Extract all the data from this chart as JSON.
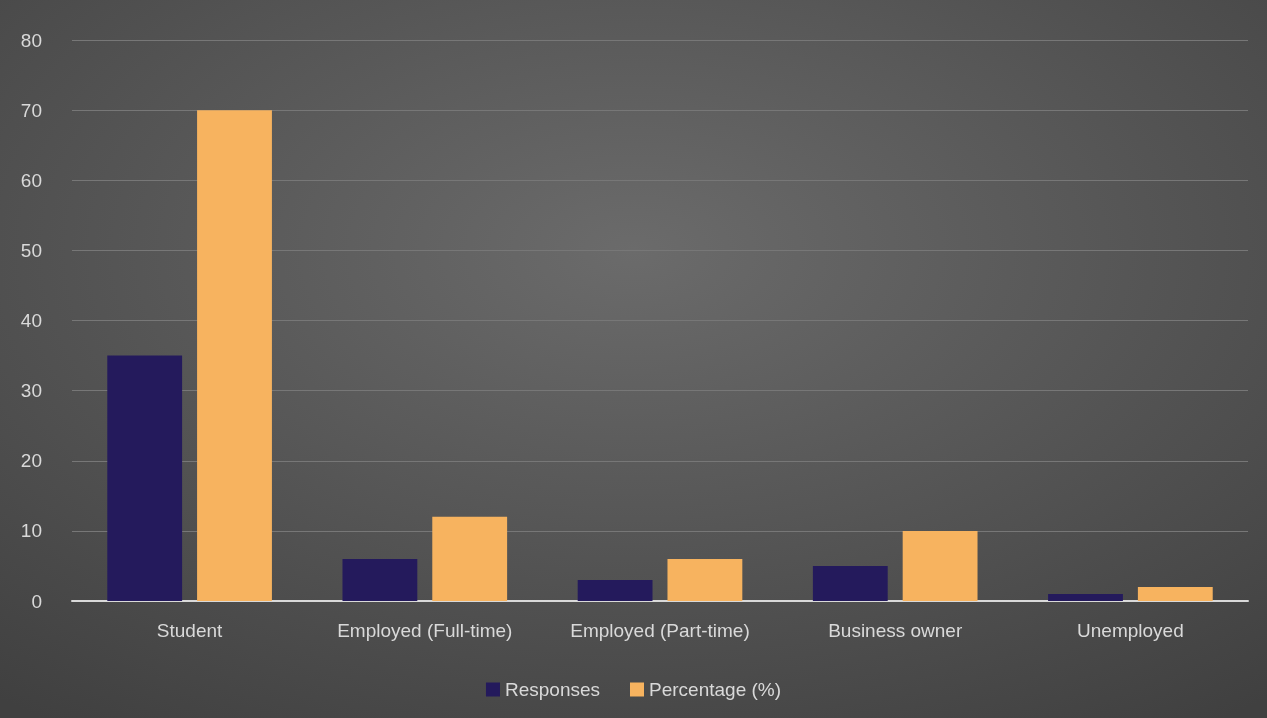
{
  "chart_data": {
    "type": "bar",
    "categories": [
      "Student",
      "Employed (Full-time)",
      "Employed (Part-time)",
      "Business owner",
      "Unemployed"
    ],
    "series": [
      {
        "name": "Responses",
        "color": "#241a5c",
        "values": [
          35,
          6,
          3,
          5,
          1
        ]
      },
      {
        "name": "Percentage (%)",
        "color": "#f7b35f",
        "values": [
          70,
          12,
          6,
          10,
          2
        ]
      }
    ],
    "ylim": [
      0,
      80
    ],
    "yticks": [
      0,
      10,
      20,
      30,
      40,
      50,
      60,
      70,
      80
    ],
    "grid": "y",
    "legend": "bottom"
  }
}
